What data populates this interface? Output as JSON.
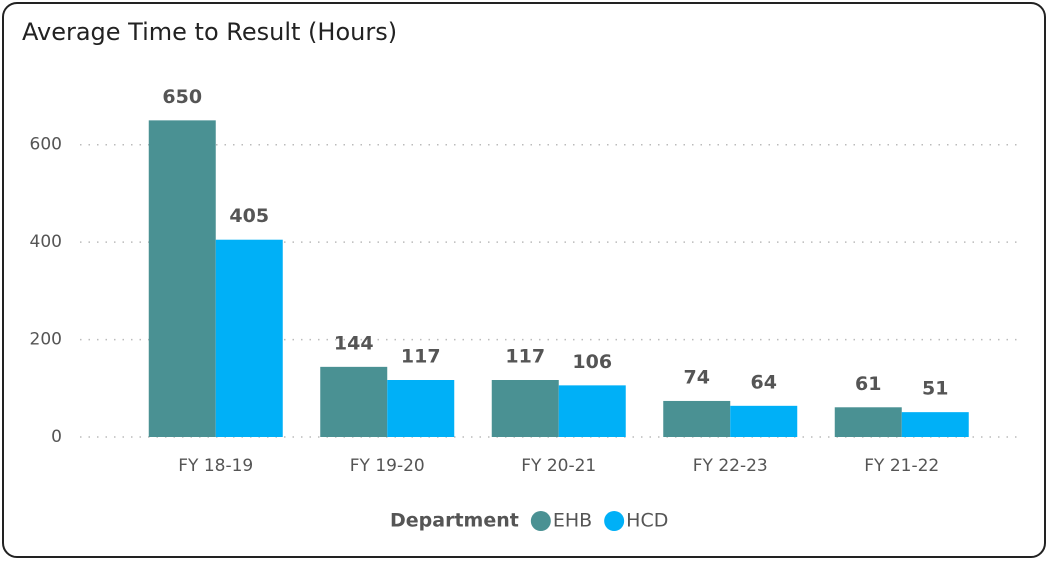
{
  "chart_data": {
    "type": "bar",
    "title": "Average Time to Result (Hours)",
    "categories": [
      "FY 18-19",
      "FY 19-20",
      "FY 20-21",
      "FY 22-23",
      "FY 21-22"
    ],
    "series": [
      {
        "name": "EHB",
        "color": "#4a9193",
        "values": [
          650,
          144,
          117,
          74,
          61
        ]
      },
      {
        "name": "HCD",
        "color": "#00b0f7",
        "values": [
          405,
          117,
          106,
          64,
          51
        ]
      }
    ],
    "legend_title": "Department",
    "ylim": [
      0,
      700
    ],
    "yticks": [
      0,
      200,
      400,
      600
    ],
    "grid": true,
    "legend": "bottom"
  }
}
